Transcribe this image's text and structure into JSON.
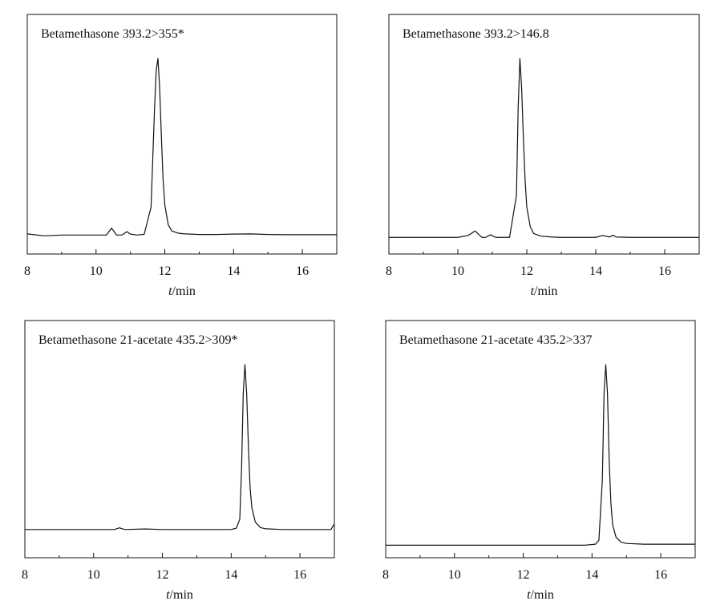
{
  "chart_data": [
    {
      "type": "line",
      "title": "Betamethasone 393.2>355*",
      "xlabel_italic": "t",
      "xlabel_unit": "/min",
      "xlim": [
        8,
        17
      ],
      "xticks": [
        "8",
        "10",
        "12",
        "14",
        "16"
      ],
      "ylim": [
        0,
        100
      ],
      "grid": false,
      "series": [
        {
          "x": [
            8.0,
            8.5,
            9.0,
            9.5,
            10.0,
            10.3,
            10.45,
            10.6,
            10.75,
            10.9,
            11.0,
            11.2,
            11.4,
            11.6,
            11.7,
            11.75,
            11.8,
            11.85,
            11.9,
            11.95,
            12.0,
            12.1,
            12.2,
            12.4,
            12.6,
            13.0,
            13.5,
            14.0,
            14.5,
            15.0,
            15.5,
            16.0,
            16.5,
            17.0
          ],
          "y": [
            10.3,
            9.3,
            9.7,
            9.7,
            9.7,
            9.7,
            13.2,
            9.7,
            9.7,
            11.4,
            10.2,
            9.7,
            10.1,
            24.0,
            74.0,
            94.0,
            100.0,
            85.0,
            60.0,
            38.0,
            25.0,
            15.0,
            11.8,
            10.6,
            10.3,
            10.0,
            10.0,
            10.2,
            10.3,
            10.0,
            9.9,
            9.9,
            9.9,
            9.9
          ]
        }
      ]
    },
    {
      "type": "line",
      "title": "Betamethasone 393.2>146.8",
      "xlabel_italic": "t",
      "xlabel_unit": "/min",
      "xlim": [
        8,
        17
      ],
      "xticks": [
        "8",
        "10",
        "12",
        "14",
        "16"
      ],
      "ylim": [
        0,
        100
      ],
      "grid": false,
      "series": [
        {
          "x": [
            8.0,
            9.0,
            10.0,
            10.3,
            10.5,
            10.7,
            10.8,
            10.95,
            11.1,
            11.5,
            11.7,
            11.75,
            11.8,
            11.85,
            11.9,
            11.95,
            12.0,
            12.1,
            12.2,
            12.4,
            12.7,
            13.0,
            13.5,
            14.0,
            14.2,
            14.4,
            14.5,
            14.6,
            15.0,
            16.0,
            17.0
          ],
          "y": [
            8.5,
            8.5,
            8.5,
            9.5,
            11.8,
            8.5,
            8.5,
            9.8,
            8.5,
            8.5,
            30.0,
            75.0,
            100.0,
            85.0,
            60.0,
            38.0,
            24.0,
            14.0,
            10.5,
            9.2,
            8.7,
            8.5,
            8.5,
            8.5,
            9.5,
            8.7,
            9.6,
            8.7,
            8.5,
            8.5,
            8.5
          ]
        }
      ]
    },
    {
      "type": "line",
      "title": "Betamethasone 21-acetate 435.2>309*",
      "xlabel_italic": "t",
      "xlabel_unit": "/min",
      "xlim": [
        8,
        17
      ],
      "xticks": [
        "8",
        "10",
        "12",
        "14",
        "16"
      ],
      "ylim": [
        0,
        100
      ],
      "grid": false,
      "series": [
        {
          "x": [
            8.0,
            9.0,
            10.0,
            10.6,
            10.75,
            10.9,
            11.5,
            12.0,
            13.0,
            14.0,
            14.15,
            14.25,
            14.3,
            14.35,
            14.4,
            14.45,
            14.5,
            14.55,
            14.6,
            14.7,
            14.85,
            15.0,
            15.5,
            16.0,
            16.5,
            16.9,
            17.0
          ],
          "y": [
            14.6,
            14.6,
            14.6,
            14.6,
            15.5,
            14.6,
            14.9,
            14.6,
            14.6,
            14.6,
            15.3,
            20.0,
            45.0,
            85.0,
            100.0,
            85.0,
            58.0,
            36.0,
            26.0,
            18.5,
            15.6,
            15.0,
            14.6,
            14.6,
            14.6,
            14.6,
            17.5
          ]
        }
      ]
    },
    {
      "type": "line",
      "title": "Betamethasone 21-acetate 435.2>337",
      "xlabel_italic": "t",
      "xlabel_unit": "/min",
      "xlim": [
        8,
        17
      ],
      "xticks": [
        "8",
        "10",
        "12",
        "14",
        "16"
      ],
      "ylim": [
        0,
        100
      ],
      "grid": false,
      "series": [
        {
          "x": [
            8.0,
            9.0,
            10.0,
            11.0,
            12.0,
            13.0,
            13.8,
            14.1,
            14.2,
            14.3,
            14.35,
            14.4,
            14.45,
            14.5,
            14.55,
            14.6,
            14.7,
            14.85,
            15.0,
            15.5,
            16.0,
            16.5,
            17.0
          ],
          "y": [
            6.5,
            6.5,
            6.5,
            6.5,
            6.5,
            6.5,
            6.5,
            7.0,
            9.0,
            40.0,
            85.0,
            100.0,
            85.0,
            50.0,
            28.0,
            17.0,
            10.5,
            8.0,
            7.4,
            7.0,
            7.0,
            7.0,
            7.0
          ]
        }
      ]
    }
  ]
}
